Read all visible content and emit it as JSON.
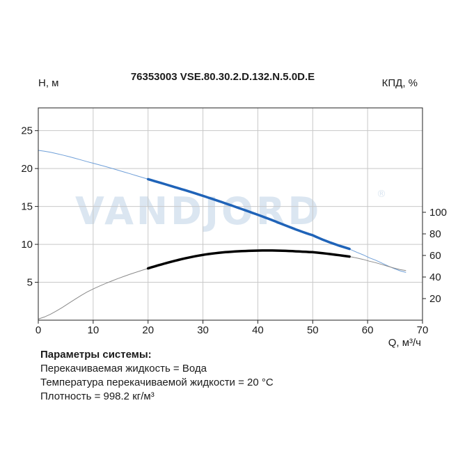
{
  "chart_data": {
    "type": "line",
    "title": "76353003 VSE.80.30.2.D.132.N.5.0D.E",
    "ylabel_left": "H, м",
    "ylabel_right": "КПД, %",
    "xlabel": "Q, м³/ч",
    "xlim": [
      0,
      70
    ],
    "ylim_left": [
      0,
      28
    ],
    "ylim_right": [
      0,
      100
    ],
    "x_ticks": [
      0,
      10,
      20,
      30,
      40,
      50,
      60,
      70
    ],
    "y_left_ticks": [
      5,
      10,
      15,
      20,
      25
    ],
    "y_right_ticks": [
      20,
      40,
      60,
      80,
      100
    ],
    "grid": true,
    "watermark": "VANDJORD",
    "watermark_mark": "®",
    "series": [
      {
        "axis": "left",
        "color": "#1f63b8",
        "operating_range": [
          20,
          56.7
        ],
        "x": [
          0,
          10,
          20,
          30,
          40,
          50,
          56.7,
          60,
          67
        ],
        "y": [
          22.4,
          20.7,
          18.6,
          16.4,
          13.9,
          11.2,
          9.4,
          8.3,
          6.3
        ]
      },
      {
        "axis": "right",
        "color": "#000000",
        "operating_range": [
          20,
          56.7
        ],
        "x": [
          0,
          10,
          20,
          30,
          40,
          50,
          56.7,
          60,
          67
        ],
        "y": [
          1,
          29,
          48,
          60.5,
          64.5,
          63,
          59,
          55,
          46
        ]
      }
    ]
  },
  "params": {
    "title": "Параметры системы:",
    "lines": [
      "Перекачиваемая жидкость = Вода",
      "Температура перекачиваемой жидкости = 20 °C",
      "Плотность = 998.2 кг/м³"
    ]
  }
}
